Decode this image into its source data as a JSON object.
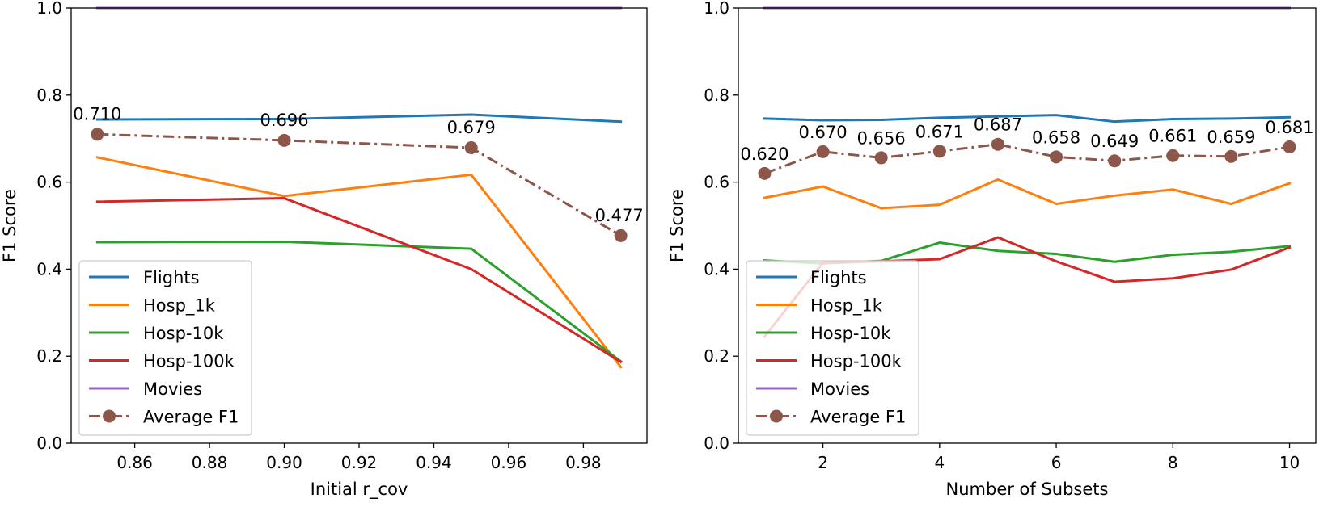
{
  "chart_data": [
    {
      "type": "line",
      "xlabel": "Initial r_cov",
      "ylabel": "F1 Score",
      "xlim": [
        0.843,
        0.997
      ],
      "ylim": [
        0.0,
        1.0
      ],
      "xticks": [
        0.86,
        0.88,
        0.9,
        0.92,
        0.94,
        0.96,
        0.98
      ],
      "xtick_labels": [
        "0.86",
        "0.88",
        "0.90",
        "0.92",
        "0.94",
        "0.96",
        "0.98"
      ],
      "yticks": [
        0.0,
        0.2,
        0.4,
        0.6,
        0.8,
        1.0
      ],
      "ytick_labels": [
        "0.0",
        "0.2",
        "0.4",
        "0.6",
        "0.8",
        "1.0"
      ],
      "grid": false,
      "legend_position": "lower-left",
      "x": [
        0.85,
        0.9,
        0.95,
        0.99
      ],
      "series": [
        {
          "name": "Flights",
          "color": "#1f77b4",
          "values": [
            0.744,
            0.745,
            0.755,
            0.739
          ]
        },
        {
          "name": "Hosp_1k",
          "color": "#ff7f0e",
          "values": [
            0.657,
            0.568,
            0.617,
            0.175
          ]
        },
        {
          "name": "Hosp-10k",
          "color": "#2ca02c",
          "values": [
            0.462,
            0.463,
            0.447,
            0.188
          ]
        },
        {
          "name": "Hosp-100k",
          "color": "#d62728",
          "values": [
            0.555,
            0.563,
            0.4,
            0.187
          ]
        },
        {
          "name": "Movies",
          "color": "#9467bd",
          "values": [
            1.0,
            1.0,
            1.0,
            1.0
          ]
        },
        {
          "name": "Average F1",
          "color": "#8c564b",
          "style": "dashdot-markers",
          "values": [
            0.71,
            0.696,
            0.679,
            0.477
          ]
        }
      ],
      "annotations": [
        "0.710",
        "0.696",
        "0.679",
        "0.477"
      ]
    },
    {
      "type": "line",
      "xlabel": "Number of Subsets",
      "ylabel": "F1 Score",
      "xlim": [
        0.55,
        10.45
      ],
      "ylim": [
        0.0,
        1.0
      ],
      "xticks": [
        2,
        4,
        6,
        8,
        10
      ],
      "xtick_labels": [
        "2",
        "4",
        "6",
        "8",
        "10"
      ],
      "yticks": [
        0.0,
        0.2,
        0.4,
        0.6,
        0.8,
        1.0
      ],
      "ytick_labels": [
        "0.0",
        "0.2",
        "0.4",
        "0.6",
        "0.8",
        "1.0"
      ],
      "grid": false,
      "legend_position": "lower-left",
      "x": [
        1,
        2,
        3,
        4,
        5,
        6,
        7,
        8,
        9,
        10
      ],
      "series": [
        {
          "name": "Flights",
          "color": "#1f77b4",
          "values": [
            0.746,
            0.742,
            0.743,
            0.748,
            0.751,
            0.754,
            0.739,
            0.745,
            0.746,
            0.749
          ]
        },
        {
          "name": "Hosp_1k",
          "color": "#ff7f0e",
          "values": [
            0.564,
            0.59,
            0.54,
            0.548,
            0.606,
            0.55,
            0.569,
            0.583,
            0.55,
            0.597
          ]
        },
        {
          "name": "Hosp-10k",
          "color": "#2ca02c",
          "values": [
            0.42,
            0.413,
            0.419,
            0.461,
            0.442,
            0.435,
            0.417,
            0.433,
            0.44,
            0.453
          ]
        },
        {
          "name": "Hosp-100k",
          "color": "#d62728",
          "values": [
            0.245,
            0.415,
            0.418,
            0.423,
            0.473,
            0.418,
            0.371,
            0.379,
            0.399,
            0.45
          ]
        },
        {
          "name": "Movies",
          "color": "#9467bd",
          "values": [
            1.0,
            1.0,
            1.0,
            1.0,
            1.0,
            1.0,
            1.0,
            1.0,
            1.0,
            1.0
          ]
        },
        {
          "name": "Average F1",
          "color": "#8c564b",
          "style": "dashdot-markers",
          "values": [
            0.62,
            0.67,
            0.656,
            0.671,
            0.687,
            0.658,
            0.649,
            0.661,
            0.659,
            0.681
          ]
        }
      ],
      "annotations": [
        "0.620",
        "0.670",
        "0.656",
        "0.671",
        "0.687",
        "0.658",
        "0.649",
        "0.661",
        "0.659",
        "0.681"
      ]
    }
  ]
}
